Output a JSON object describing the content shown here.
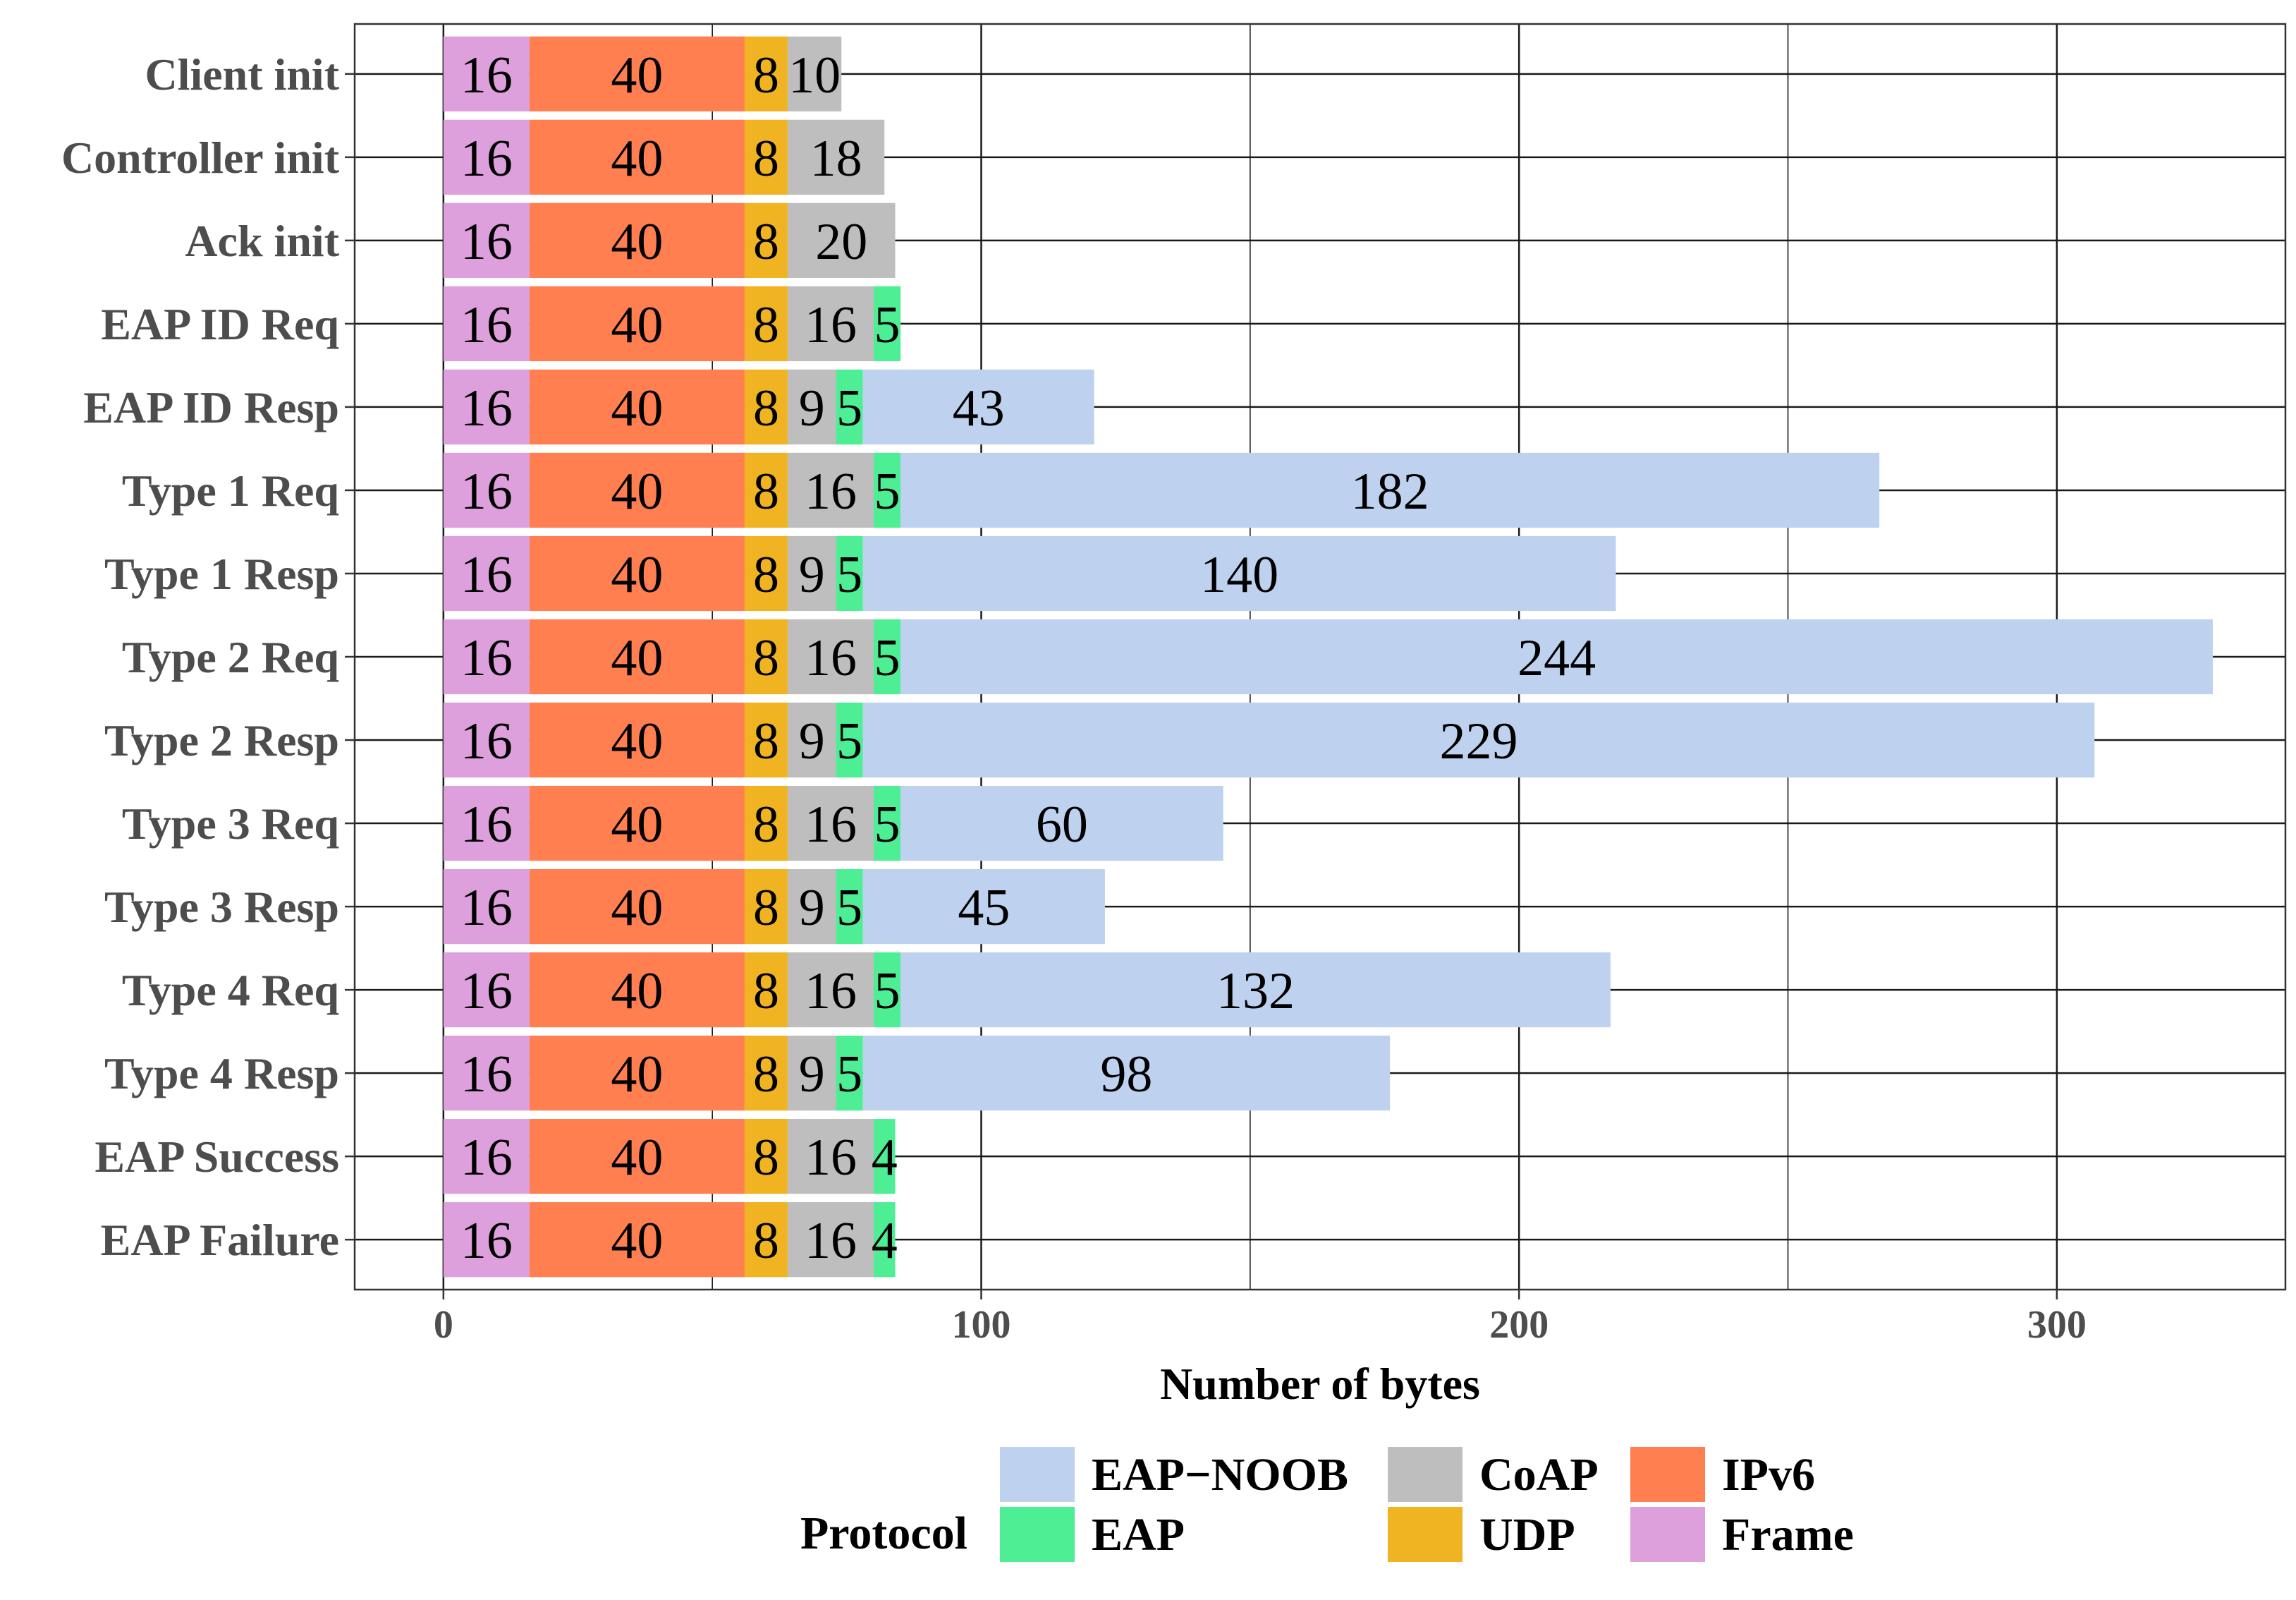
{
  "chart_data": {
    "type": "bar",
    "orientation": "horizontal",
    "stacked": true,
    "title": "",
    "xlabel": "Number of bytes",
    "ylabel": "",
    "xlim": [
      -16.5,
      342.5
    ],
    "xticks": [
      0,
      100,
      200,
      300
    ],
    "xtick_labels": [
      "0",
      "100",
      "200",
      "300"
    ],
    "grid": true,
    "legend_position": "bottom",
    "legend_title": "Protocol",
    "categories": [
      "Client init",
      "Controller init",
      "Ack init",
      "EAP ID Req",
      "EAP ID Resp",
      "Type 1 Req",
      "Type 1 Resp",
      "Type 2 Req",
      "Type 2 Resp",
      "Type 3 Req",
      "Type 3 Resp",
      "Type 4 Req",
      "Type 4 Resp",
      "EAP Success",
      "EAP Failure"
    ],
    "series": [
      {
        "name": "Frame",
        "color": "#dda0dd",
        "values": [
          16,
          16,
          16,
          16,
          16,
          16,
          16,
          16,
          16,
          16,
          16,
          16,
          16,
          16,
          16
        ]
      },
      {
        "name": "IPv6",
        "color": "#ff7f50",
        "values": [
          40,
          40,
          40,
          40,
          40,
          40,
          40,
          40,
          40,
          40,
          40,
          40,
          40,
          40,
          40
        ]
      },
      {
        "name": "UDP",
        "color": "#f0b321",
        "values": [
          8,
          8,
          8,
          8,
          8,
          8,
          8,
          8,
          8,
          8,
          8,
          8,
          8,
          8,
          8
        ]
      },
      {
        "name": "CoAP",
        "color": "#bebebe",
        "values": [
          10,
          18,
          20,
          16,
          9,
          16,
          9,
          16,
          9,
          16,
          9,
          16,
          9,
          16,
          16
        ]
      },
      {
        "name": "EAP",
        "color": "#4eee94",
        "values": [
          null,
          null,
          null,
          5,
          5,
          5,
          5,
          5,
          5,
          5,
          5,
          5,
          5,
          4,
          4
        ]
      },
      {
        "name": "EAP−NOOB",
        "color": "#bed2ef",
        "values": [
          null,
          null,
          null,
          null,
          43,
          182,
          140,
          244,
          229,
          60,
          45,
          132,
          98,
          null,
          null
        ]
      }
    ],
    "legend_order": [
      "EAP−NOOB",
      "EAP",
      "CoAP",
      "UDP",
      "IPv6",
      "Frame"
    ]
  }
}
